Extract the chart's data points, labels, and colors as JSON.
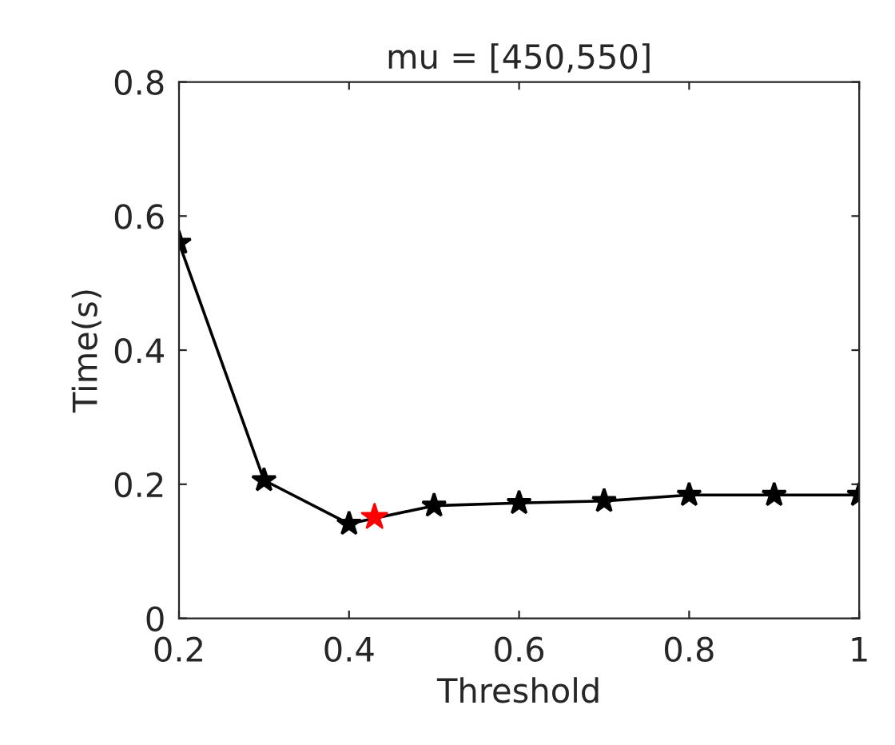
{
  "chart_data": {
    "type": "line",
    "title": "mu = [450,550]",
    "xlabel": "Threshold",
    "ylabel": "Time(s)",
    "x": [
      0.2,
      0.3,
      0.4,
      0.5,
      0.6,
      0.7,
      0.8,
      0.9,
      1.0
    ],
    "series": [
      {
        "color": "#000000",
        "marker": "star",
        "values": [
          0.56,
          0.206,
          0.141,
          0.168,
          0.172,
          0.175,
          0.184,
          0.184,
          0.184
        ]
      },
      {
        "type": "scatter",
        "color": "#ff0000",
        "marker": "star",
        "x": [
          0.43
        ],
        "values": [
          0.151
        ]
      }
    ],
    "xlim": [
      0.2,
      1.0
    ],
    "ylim": [
      0,
      0.8
    ],
    "xticks": [
      {
        "value": 0.2,
        "label": "0.2"
      },
      {
        "value": 0.4,
        "label": "0.4"
      },
      {
        "value": 0.6,
        "label": "0.6"
      },
      {
        "value": 0.8,
        "label": "0.8"
      },
      {
        "value": 1.0,
        "label": "1"
      }
    ],
    "yticks": [
      {
        "value": 0,
        "label": "0"
      },
      {
        "value": 0.2,
        "label": "0.2"
      },
      {
        "value": 0.4,
        "label": "0.4"
      },
      {
        "value": 0.6,
        "label": "0.6"
      },
      {
        "value": 0.8,
        "label": "0.8"
      }
    ],
    "grid": false,
    "legend": false
  }
}
